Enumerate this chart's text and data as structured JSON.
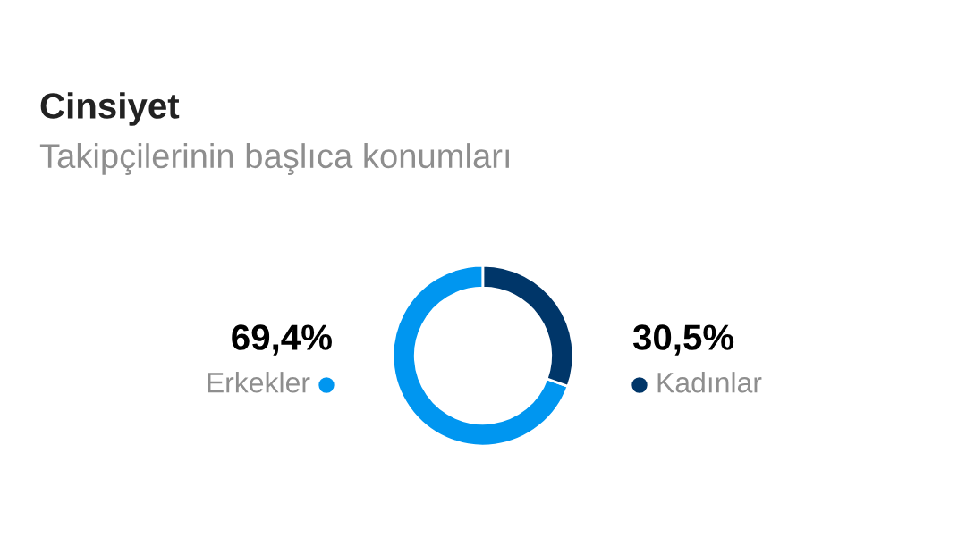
{
  "chart_data": {
    "type": "donut",
    "title": "Cinsiyet",
    "subtitle": "Takipçilerinin başlıca konumları",
    "categories": [
      "Erkekler",
      "Kadınlar"
    ],
    "values": [
      69.4,
      30.5
    ],
    "colors": [
      "#0096f0",
      "#003669"
    ],
    "value_labels": [
      "69,4%",
      "30,5%"
    ]
  }
}
